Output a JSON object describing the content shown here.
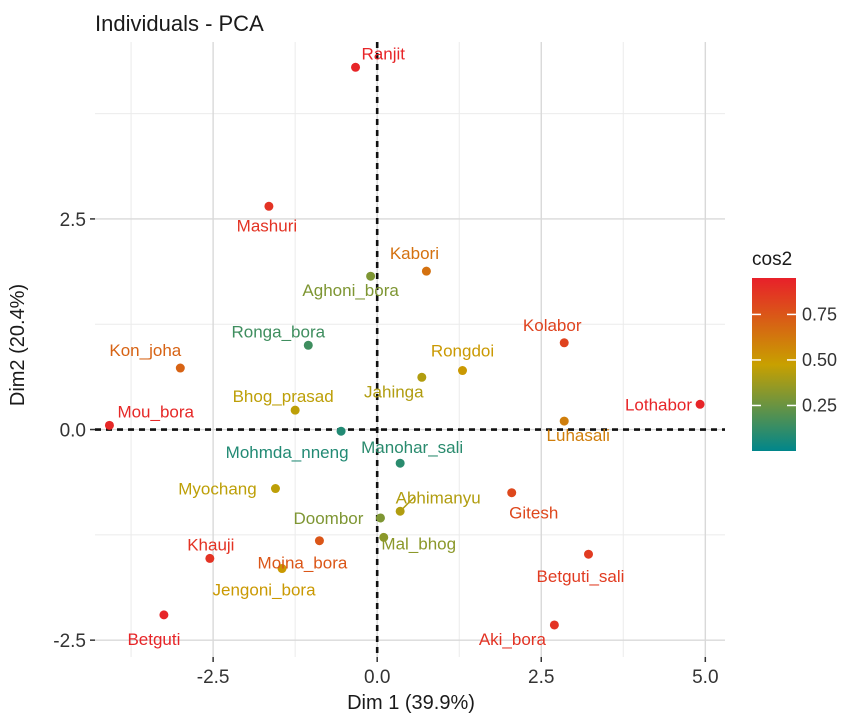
{
  "chart_data": {
    "type": "scatter",
    "title": "Individuals - PCA",
    "xlabel": "Dim 1 (39.9%)",
    "ylabel": "Dim2 (20.4%)",
    "xlim": [
      -4.3,
      5.3
    ],
    "ylim": [
      -2.7,
      4.6
    ],
    "x_ticks": [
      -2.5,
      0.0,
      2.5,
      5.0
    ],
    "x_tick_labels": [
      "-2.5",
      "0.0",
      "2.5",
      "5.0"
    ],
    "y_ticks": [
      -2.5,
      0.0,
      2.5
    ],
    "y_tick_labels": [
      "-2.5",
      "0.0",
      "2.5"
    ],
    "grid": true,
    "reference_lines": {
      "x": 0,
      "y": 0,
      "style": "dashed"
    },
    "color_scale": {
      "title": "cos2",
      "ticks": [
        0.75,
        0.5,
        0.25
      ],
      "tick_labels": [
        "0.75",
        "0.50",
        "0.25"
      ],
      "low_color": "#00868b",
      "mid_color": "#c8a000",
      "high_color": "#e8202a",
      "range": [
        0.0,
        0.95
      ]
    },
    "points": [
      {
        "label": "Ranjit",
        "x": -0.33,
        "y": 4.3,
        "cos2": 0.93
      },
      {
        "label": "Mashuri",
        "x": -1.65,
        "y": 2.65,
        "cos2": 0.88
      },
      {
        "label": "Kabori",
        "x": 0.75,
        "y": 1.88,
        "cos2": 0.65
      },
      {
        "label": "Aghoni_bora",
        "x": -0.1,
        "y": 1.82,
        "cos2": 0.3
      },
      {
        "label": "Ronga_bora",
        "x": -1.05,
        "y": 1.0,
        "cos2": 0.15
      },
      {
        "label": "Kolabor",
        "x": 2.85,
        "y": 1.03,
        "cos2": 0.82
      },
      {
        "label": "Kon_joha",
        "x": -3.0,
        "y": 0.73,
        "cos2": 0.7
      },
      {
        "label": "Rongdoi",
        "x": 1.3,
        "y": 0.7,
        "cos2": 0.5
      },
      {
        "label": "Jahinga",
        "x": 0.68,
        "y": 0.62,
        "cos2": 0.42
      },
      {
        "label": "Lothabor",
        "x": 4.92,
        "y": 0.3,
        "cos2": 0.93
      },
      {
        "label": "Bhog_prasad",
        "x": -1.25,
        "y": 0.23,
        "cos2": 0.45
      },
      {
        "label": "Luhasali",
        "x": 2.85,
        "y": 0.1,
        "cos2": 0.6
      },
      {
        "label": "Mou_bora",
        "x": -4.08,
        "y": 0.05,
        "cos2": 0.92
      },
      {
        "label": "Mohmda_nneng",
        "x": -0.55,
        "y": -0.02,
        "cos2": 0.08
      },
      {
        "label": "Manohar_sali",
        "x": 0.35,
        "y": -0.4,
        "cos2": 0.1
      },
      {
        "label": "Myochang",
        "x": -1.55,
        "y": -0.7,
        "cos2": 0.45
      },
      {
        "label": "Gitesh",
        "x": 2.05,
        "y": -0.75,
        "cos2": 0.8
      },
      {
        "label": "Abhimanyu",
        "x": 0.35,
        "y": -0.97,
        "cos2": 0.42
      },
      {
        "label": "Doombor",
        "x": 0.05,
        "y": -1.05,
        "cos2": 0.3
      },
      {
        "label": "Mal_bhog",
        "x": 0.1,
        "y": -1.28,
        "cos2": 0.33
      },
      {
        "label": "Moina_bora",
        "x": -0.88,
        "y": -1.32,
        "cos2": 0.75
      },
      {
        "label": "Khauji",
        "x": -2.55,
        "y": -1.53,
        "cos2": 0.88
      },
      {
        "label": "Betguti_sali",
        "x": 3.22,
        "y": -1.48,
        "cos2": 0.85
      },
      {
        "label": "Jengoni_bora",
        "x": -1.45,
        "y": -1.65,
        "cos2": 0.5
      },
      {
        "label": "Betguti",
        "x": -3.25,
        "y": -2.2,
        "cos2": 0.93
      },
      {
        "label": "Aki_bora",
        "x": 2.7,
        "y": -2.32,
        "cos2": 0.88
      }
    ]
  }
}
